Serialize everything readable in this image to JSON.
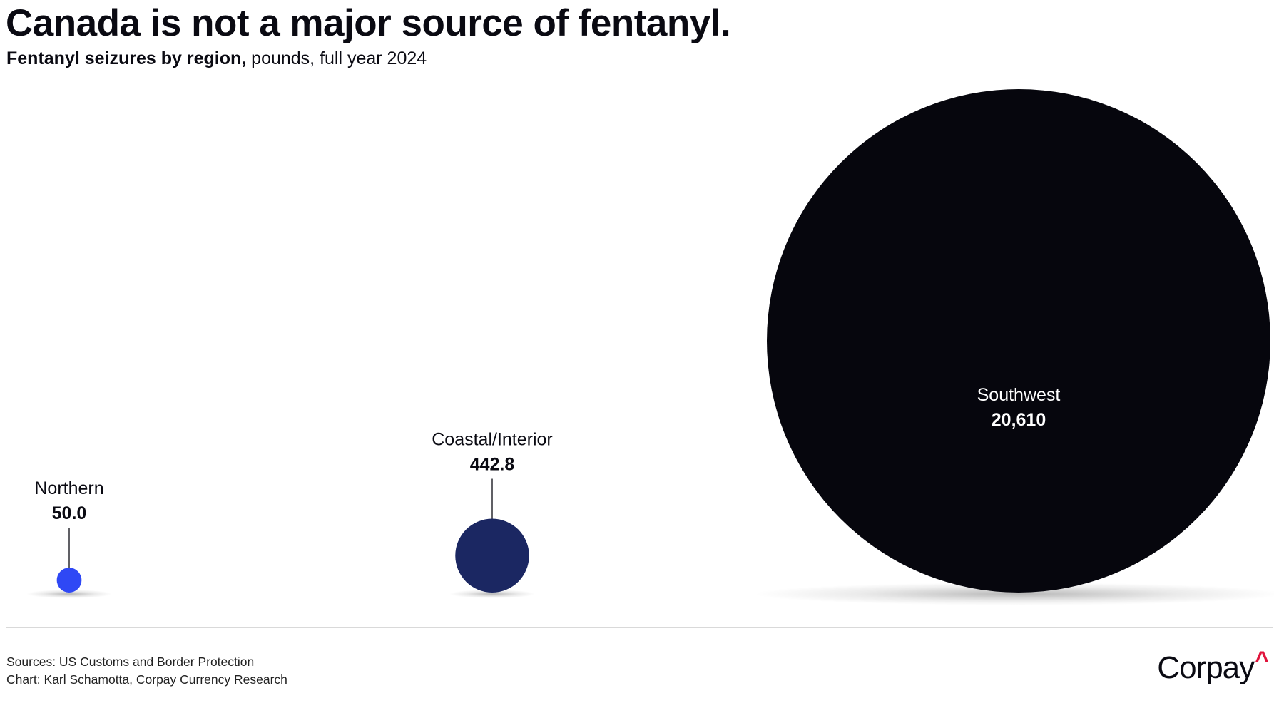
{
  "title": "Canada is not a major source of fentanyl.",
  "subtitle": {
    "bold": "Fentanyl seizures by region,",
    "normal": " pounds, full year 2024"
  },
  "footer": {
    "sources": "Sources: US Customs and Border Protection",
    "chart": "Chart: Karl Schamotta, Corpay Currency Research"
  },
  "brand": {
    "name": "Corpay",
    "mark": "^",
    "mark_color": "#e0143c"
  },
  "chart_data": {
    "type": "bubble",
    "title": "Canada is not a major source of fentanyl.",
    "subtitle": "Fentanyl seizures by region, pounds, full year 2024",
    "unit": "pounds",
    "points": [
      {
        "label": "Northern",
        "value": 50.0,
        "value_label": "50.0",
        "color": "#2f48f5"
      },
      {
        "label": "Coastal/Interior",
        "value": 442.8,
        "value_label": "442.8",
        "color": "#1b2762"
      },
      {
        "label": "Southwest",
        "value": 20610,
        "value_label": "20,610",
        "color": "#06060d"
      }
    ],
    "background": "#ffffff",
    "label_color": "#0a0a12",
    "label_color_inside": "#ffffff"
  }
}
